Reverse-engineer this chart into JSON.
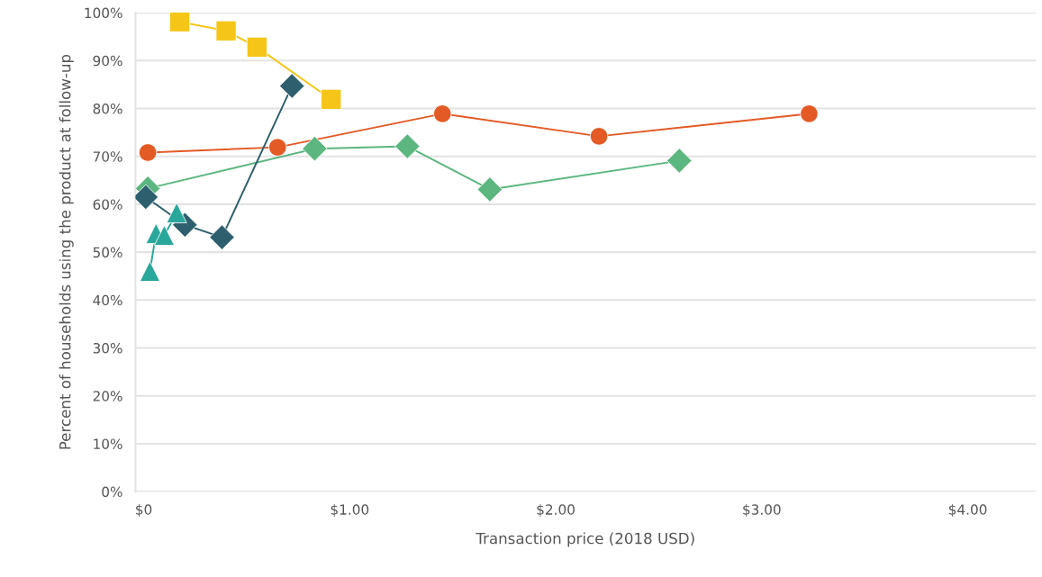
{
  "chart_data": {
    "type": "line",
    "xlabel": "Transaction price (2018 USD)",
    "ylabel": "Percent of households using the product at follow-up",
    "xlim": [
      -0.04,
      4.33
    ],
    "ylim": [
      0,
      100
    ],
    "xticks": [
      {
        "value": 0,
        "label": "$0"
      },
      {
        "value": 1,
        "label": "$1.00"
      },
      {
        "value": 2,
        "label": "$2.00"
      },
      {
        "value": 3,
        "label": "$3.00"
      },
      {
        "value": 4,
        "label": "$4.00"
      }
    ],
    "yticks": [
      {
        "value": 0,
        "label": "0%"
      },
      {
        "value": 10,
        "label": "10%"
      },
      {
        "value": 20,
        "label": "20%"
      },
      {
        "value": 30,
        "label": "30%"
      },
      {
        "value": 40,
        "label": "40%"
      },
      {
        "value": 50,
        "label": "50%"
      },
      {
        "value": 60,
        "label": "60%"
      },
      {
        "value": 70,
        "label": "70%"
      },
      {
        "value": 80,
        "label": "80%"
      },
      {
        "value": 90,
        "label": "90%"
      },
      {
        "value": 100,
        "label": "100%"
      }
    ],
    "grid": "y",
    "legend": false,
    "series": [
      {
        "color": "#f5c518",
        "marker": "square",
        "x": [
          0.175,
          0.4,
          0.55,
          0.91
        ],
        "values": [
          98.1,
          96.2,
          92.8,
          81.9
        ]
      },
      {
        "color": "#e35a25",
        "marker": "circle",
        "x": [
          0.02,
          0.65,
          1.45,
          2.21,
          3.23
        ],
        "values": [
          70.8,
          71.9,
          78.9,
          74.2,
          78.9
        ]
      },
      {
        "color": "#5cb67f",
        "marker": "diamond",
        "x": [
          0.02,
          0.83,
          1.28,
          1.68,
          2.6
        ],
        "values": [
          63.3,
          71.6,
          72.1,
          63.1,
          69.1
        ]
      },
      {
        "color": "#2e5f6e",
        "marker": "diamond",
        "x": [
          0.01,
          0.2,
          0.38,
          0.72
        ],
        "values": [
          61.5,
          55.7,
          53.1,
          84.7
        ]
      },
      {
        "color": "#2aa79b",
        "marker": "triangle",
        "x": [
          0.03,
          0.06,
          0.1,
          0.16
        ],
        "values": [
          46.0,
          53.9,
          53.5,
          58.2
        ]
      }
    ]
  }
}
